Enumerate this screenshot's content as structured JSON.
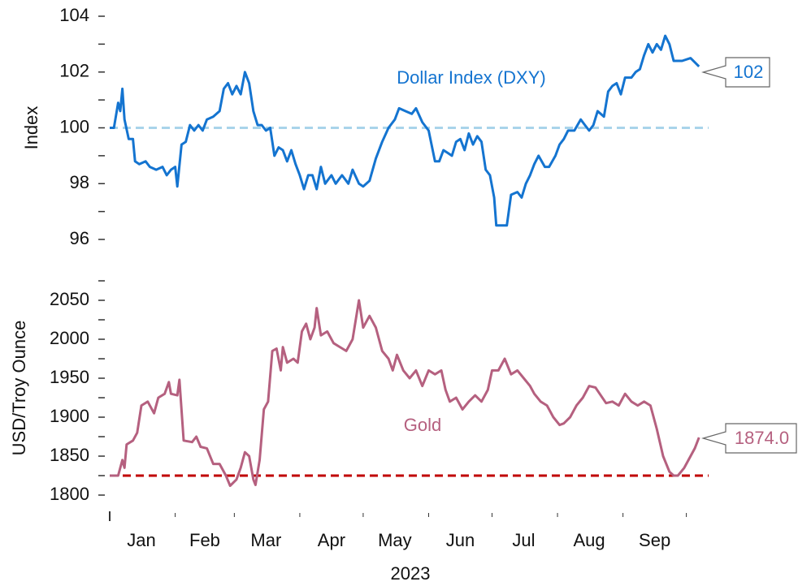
{
  "chart_data": [
    {
      "type": "line",
      "ylabel": "Index",
      "ylim": [
        96,
        104
      ],
      "yticks": [
        96,
        98,
        100,
        102,
        104
      ],
      "yminor_ticks": [
        97,
        99,
        101,
        103
      ],
      "xlim": [
        1,
        283
      ],
      "reference_line": {
        "value": 100,
        "color": "#a9d4ea",
        "style": "dashed"
      },
      "series": [
        {
          "name": "Dollar Index (DXY)",
          "color": "#1474d0",
          "end_label": "102",
          "x": [
            1,
            3,
            5,
            6,
            7,
            8,
            10,
            12,
            13,
            15,
            18,
            20,
            23,
            26,
            28,
            30,
            32,
            33,
            35,
            37,
            39,
            41,
            43,
            45,
            47,
            50,
            53,
            55,
            57,
            59,
            61,
            63,
            65,
            67,
            69,
            71,
            73,
            75,
            77,
            79,
            81,
            83,
            85,
            87,
            89,
            91,
            93,
            95,
            97,
            99,
            101,
            103,
            106,
            108,
            111,
            114,
            116,
            119,
            121,
            124,
            127,
            130,
            133,
            136,
            138,
            141,
            144,
            146,
            149,
            152,
            155,
            157,
            159,
            161,
            163,
            165,
            167,
            169,
            171,
            173,
            175,
            177,
            179,
            181,
            183,
            184,
            186,
            189,
            191,
            194,
            196,
            198,
            200,
            202,
            204,
            207,
            209,
            212,
            214,
            216,
            218,
            221,
            224,
            226,
            228,
            230,
            232,
            235,
            237,
            239,
            241,
            243,
            245,
            248,
            250,
            252,
            254,
            256,
            258,
            260,
            262,
            264,
            266,
            268,
            272,
            276,
            280
          ],
          "values": [
            100.0,
            100.0,
            100.9,
            100.6,
            101.4,
            100.3,
            99.6,
            99.6,
            98.8,
            98.7,
            98.8,
            98.6,
            98.5,
            98.6,
            98.3,
            98.5,
            98.6,
            97.9,
            99.4,
            99.5,
            100.1,
            99.9,
            100.1,
            99.9,
            100.3,
            100.4,
            100.6,
            101.4,
            101.6,
            101.2,
            101.5,
            101.2,
            102.0,
            101.6,
            100.6,
            100.1,
            100.1,
            99.9,
            100.0,
            99.0,
            99.3,
            99.2,
            98.8,
            99.2,
            98.7,
            98.3,
            97.8,
            98.3,
            98.3,
            97.8,
            98.6,
            98.0,
            98.3,
            98.0,
            98.3,
            98.0,
            98.5,
            98.0,
            97.9,
            98.1,
            98.9,
            99.5,
            100.0,
            100.3,
            100.7,
            100.6,
            100.5,
            100.7,
            100.2,
            99.9,
            98.8,
            98.8,
            99.2,
            99.1,
            99.0,
            99.5,
            99.6,
            99.2,
            99.8,
            99.4,
            99.7,
            99.5,
            98.5,
            98.3,
            97.5,
            96.5,
            96.5,
            96.5,
            97.6,
            97.7,
            97.5,
            98.0,
            98.3,
            98.7,
            99.0,
            98.6,
            98.6,
            99.0,
            99.4,
            99.6,
            99.9,
            99.9,
            100.3,
            100.1,
            99.9,
            100.1,
            100.6,
            100.4,
            101.3,
            101.5,
            101.6,
            101.2,
            101.8,
            101.8,
            102.0,
            102.1,
            102.6,
            103.0,
            102.7,
            103.0,
            102.8,
            103.3,
            103.0,
            102.4,
            102.4,
            102.5,
            102.2
          ]
        }
      ]
    },
    {
      "type": "line",
      "ylabel": "USD/Troy Ounce",
      "ylim": [
        1800,
        2075
      ],
      "yticks": [
        1800,
        1850,
        1900,
        1950,
        2000,
        2050
      ],
      "yminor_ticks": [
        1825,
        1875,
        1925,
        1975,
        2025,
        2075
      ],
      "xlim": [
        1,
        283
      ],
      "xticks": [
        {
          "value": 16,
          "label": "Jan"
        },
        {
          "value": 46,
          "label": "Feb"
        },
        {
          "value": 75,
          "label": "Mar"
        },
        {
          "value": 106,
          "label": "Apr"
        },
        {
          "value": 136,
          "label": "May"
        },
        {
          "value": 167,
          "label": "Jun"
        },
        {
          "value": 197,
          "label": "Jul"
        },
        {
          "value": 228,
          "label": "Aug"
        },
        {
          "value": 259,
          "label": "Sep"
        }
      ],
      "xminor_ticks": [
        1,
        32,
        60,
        91,
        121,
        152,
        182,
        213,
        244,
        274
      ],
      "xlabel": "2023",
      "reference_line": {
        "value": 1825,
        "color": "#c00000",
        "style": "dashed"
      },
      "series": [
        {
          "name": "Gold",
          "color": "#b5607f",
          "end_label": "1874.0",
          "x": [
            1,
            5,
            7,
            8,
            9,
            12,
            14,
            16,
            19,
            22,
            24,
            27,
            29,
            30,
            33,
            34,
            36,
            40,
            42,
            44,
            47,
            50,
            53,
            56,
            58,
            61,
            63,
            65,
            67,
            69,
            70,
            72,
            74,
            76,
            78,
            80,
            82,
            83,
            85,
            88,
            90,
            92,
            94,
            96,
            98,
            99,
            101,
            104,
            107,
            110,
            113,
            116,
            119,
            121,
            124,
            127,
            130,
            133,
            135,
            137,
            140,
            143,
            146,
            149,
            152,
            155,
            158,
            160,
            162,
            165,
            168,
            171,
            174,
            177,
            180,
            182,
            185,
            188,
            191,
            194,
            197,
            200,
            202,
            205,
            208,
            211,
            214,
            216,
            219,
            222,
            225,
            228,
            231,
            233,
            236,
            239,
            242,
            245,
            248,
            251,
            254,
            257,
            260,
            263,
            266,
            268,
            270,
            273,
            276,
            278,
            280
          ],
          "values": [
            1825,
            1825,
            1845,
            1835,
            1865,
            1870,
            1880,
            1915,
            1920,
            1905,
            1925,
            1930,
            1945,
            1930,
            1928,
            1948,
            1870,
            1868,
            1875,
            1862,
            1860,
            1840,
            1840,
            1825,
            1812,
            1820,
            1835,
            1855,
            1850,
            1820,
            1813,
            1845,
            1910,
            1920,
            1985,
            1988,
            1960,
            1990,
            1970,
            1975,
            1970,
            2010,
            2020,
            2000,
            2015,
            2040,
            2005,
            2010,
            1995,
            1990,
            1985,
            2000,
            2050,
            2015,
            2030,
            2015,
            1985,
            1975,
            1960,
            1980,
            1960,
            1950,
            1960,
            1940,
            1960,
            1955,
            1960,
            1935,
            1920,
            1925,
            1910,
            1920,
            1928,
            1920,
            1935,
            1960,
            1960,
            1975,
            1955,
            1960,
            1950,
            1940,
            1930,
            1920,
            1915,
            1900,
            1890,
            1892,
            1900,
            1915,
            1925,
            1940,
            1938,
            1930,
            1918,
            1920,
            1915,
            1930,
            1920,
            1915,
            1920,
            1915,
            1885,
            1850,
            1830,
            1825,
            1825,
            1835,
            1850,
            1860,
            1874.0
          ]
        }
      ]
    }
  ]
}
